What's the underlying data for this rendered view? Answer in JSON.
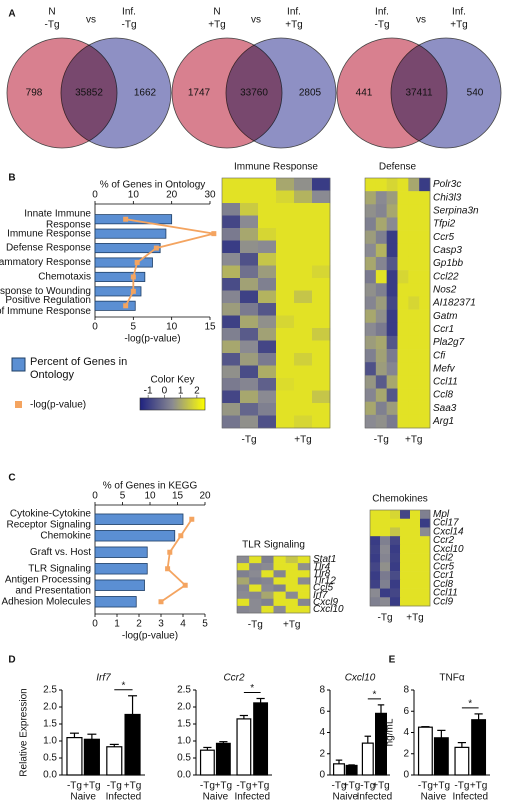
{
  "panel_labels": [
    "A",
    "B",
    "C",
    "D",
    "E"
  ],
  "color_key": {
    "title": "Color Key",
    "lim": [
      -1.5,
      2.5
    ],
    "ticks": [
      -1,
      0,
      1,
      2
    ],
    "colors": [
      "#1e2280",
      "#8a8a92",
      "#ffff00"
    ]
  },
  "chart_data": [
    {
      "type": "venn",
      "sets": [
        {
          "label": [
            "N",
            "-Tg"
          ],
          "color": "#d8808f"
        },
        {
          "label": [
            "Inf.",
            "-Tg"
          ],
          "color": "#8e90c4"
        }
      ],
      "separator": "vs",
      "values": [
        798,
        35852,
        1662
      ]
    },
    {
      "type": "venn",
      "sets": [
        {
          "label": [
            "N",
            "+Tg"
          ],
          "color": "#d8808f"
        },
        {
          "label": [
            "Inf.",
            "+Tg"
          ],
          "color": "#8e90c4"
        }
      ],
      "separator": "vs",
      "values": [
        1747,
        33760,
        2805
      ]
    },
    {
      "type": "venn",
      "sets": [
        {
          "label": [
            "Inf.",
            "-Tg"
          ],
          "color": "#d8808f"
        },
        {
          "label": [
            "Inf.",
            "+Tg"
          ],
          "color": "#8e90c4"
        }
      ],
      "separator": "vs",
      "values": [
        441,
        37411,
        540
      ]
    },
    {
      "type": "combo",
      "title": "% of Genes in Ontology",
      "xlabel": "-log(p-value)",
      "categories": [
        [
          "Innate Immune",
          "Response"
        ],
        "Immune Response",
        "Defense Response",
        "Inflammatory Response",
        "Chemotaxis",
        "Response to Wounding",
        [
          "Positive Regulation",
          "of Immune Response"
        ]
      ],
      "xlim": [
        0,
        30
      ],
      "xticks": [
        0,
        10,
        20,
        30
      ],
      "x2lim": [
        0,
        15
      ],
      "x2ticks": [
        0,
        5,
        10,
        15
      ],
      "legend": "lower left",
      "series": [
        {
          "name": "Percent of Genes in Ontology",
          "color": "#5b8fd3",
          "values": [
            20,
            18.5,
            17,
            15,
            13,
            12,
            10.5
          ]
        },
        {
          "name": "-log(p-value)",
          "color": "#f4a460",
          "values": [
            4,
            15.5,
            8,
            5.5,
            5,
            5,
            4
          ],
          "axis": "x2"
        }
      ]
    },
    {
      "type": "heatmap",
      "title": "Immune Response",
      "groups": [
        "-Tg",
        "+Tg"
      ],
      "values": [
        [
          2,
          2,
          2,
          1,
          0.6,
          -1
        ],
        [
          2,
          2,
          2,
          1.8,
          1.2,
          0.5
        ],
        [
          0.3,
          1.6,
          2,
          2,
          2,
          2
        ],
        [
          -0.8,
          0.5,
          2,
          2,
          2,
          2
        ],
        [
          0.2,
          1,
          1.8,
          2,
          2,
          2
        ],
        [
          -1,
          0.6,
          0.5,
          2,
          2,
          2
        ],
        [
          0.5,
          -0.6,
          1.5,
          2,
          2,
          2
        ],
        [
          1.2,
          0,
          0.8,
          2,
          2,
          1.8
        ],
        [
          -0.7,
          0.9,
          0.3,
          2,
          2,
          2
        ],
        [
          0.4,
          -0.9,
          1.2,
          2,
          1.5,
          2
        ],
        [
          0.8,
          0.2,
          -0.5,
          2,
          2,
          2
        ],
        [
          -0.9,
          1,
          0.6,
          1.8,
          2,
          2
        ],
        [
          0.3,
          -0.4,
          0.9,
          2,
          2,
          1.6
        ],
        [
          1,
          0.5,
          -0.8,
          2,
          2,
          2
        ],
        [
          -0.5,
          0.8,
          0.2,
          2,
          1.7,
          2
        ],
        [
          0.6,
          -0.7,
          1.1,
          2,
          2,
          2
        ],
        [
          0.2,
          0.4,
          -0.3,
          1.9,
          2,
          2
        ],
        [
          -0.8,
          1,
          0.5,
          2,
          2,
          1.5
        ],
        [
          0.7,
          -0.2,
          0.3,
          2,
          2,
          2
        ],
        [
          0.1,
          0.6,
          -0.6,
          2,
          1.8,
          2
        ]
      ]
    },
    {
      "type": "heatmap",
      "title": "Defense",
      "groups": [
        "-Tg",
        "+Tg"
      ],
      "rows": [
        "Polr3c",
        "Chi3l3",
        "Serpina3n",
        "Tfpi2",
        "Ccr5",
        "Casp3",
        "Gp1bb",
        "Ccl22",
        "Nos2",
        "AI182371",
        "Gatm",
        "Ccr1",
        "Pla2g7",
        "Cfi",
        "Mefv",
        "Ccl11",
        "Ccl8",
        "Saa3",
        "Arg1"
      ],
      "values": [
        [
          2,
          2,
          1.8,
          2,
          1,
          -1
        ],
        [
          1,
          0.5,
          0.8,
          2,
          2,
          2
        ],
        [
          0.6,
          0.4,
          1,
          2,
          2,
          2
        ],
        [
          0.3,
          1,
          0.5,
          2,
          2,
          2
        ],
        [
          0.8,
          0.3,
          -1,
          2,
          2,
          2
        ],
        [
          0.5,
          1.2,
          -1,
          2,
          2,
          2
        ],
        [
          1,
          0.4,
          -0.5,
          2,
          2,
          2
        ],
        [
          0.2,
          2,
          -1,
          1.8,
          2,
          2
        ],
        [
          0.6,
          0.3,
          -1,
          2,
          2,
          2
        ],
        [
          0.4,
          0.8,
          -0.8,
          2,
          1.8,
          2
        ],
        [
          1,
          0.6,
          -1,
          2,
          2,
          2
        ],
        [
          0.5,
          0.2,
          -1,
          2,
          2,
          2
        ],
        [
          0.8,
          1,
          -0.5,
          2,
          2,
          2
        ],
        [
          0.3,
          0.9,
          0.2,
          2,
          2,
          2
        ],
        [
          -0.6,
          0.8,
          0.4,
          2,
          2,
          2
        ],
        [
          0.7,
          -0.4,
          1,
          2,
          2,
          2
        ],
        [
          0.4,
          1,
          -0.5,
          2,
          2,
          2
        ],
        [
          1,
          0.3,
          0.8,
          2,
          2,
          2
        ],
        [
          0.5,
          0.6,
          0.2,
          2,
          2,
          2
        ]
      ]
    },
    {
      "type": "combo",
      "title": "% of Genes in KEGG",
      "xlabel": "-log(p-value)",
      "categories": [
        [
          "Cytokine-Cytokine",
          "Receptor Signaling"
        ],
        "Chemokine",
        "Graft vs. Host",
        "TLR Signaling",
        [
          "Antigen Processing",
          "and Presentation"
        ],
        "Cell Adhesion Molecules"
      ],
      "xlim": [
        0,
        20
      ],
      "xticks": [
        0,
        5,
        10,
        15,
        20
      ],
      "x2lim": [
        0,
        5
      ],
      "x2ticks": [
        0,
        1,
        2,
        3,
        4,
        5
      ],
      "series": [
        {
          "color": "#5b8fd3",
          "values": [
            16,
            14.5,
            9.5,
            9.5,
            9,
            7.5
          ]
        },
        {
          "color": "#f4a460",
          "values": [
            4.4,
            3.9,
            3.4,
            3.3,
            4.1,
            3
          ],
          "axis": "x2"
        }
      ]
    },
    {
      "type": "heatmap",
      "title": "TLR Signaling",
      "groups": [
        "-Tg",
        "+Tg"
      ],
      "rows": [
        "Stat1",
        "Tlr4",
        "Tlr8",
        "Tlr12",
        "Ccl5",
        "Irf7",
        "Cxcl9",
        "Cxcl10"
      ],
      "values": [
        [
          0.5,
          2,
          0.3,
          2,
          1.5,
          2
        ],
        [
          2,
          0.4,
          0.5,
          2,
          2,
          0.6
        ],
        [
          0.3,
          0.5,
          2,
          0.4,
          2,
          2
        ],
        [
          1,
          0.3,
          0.4,
          2,
          2,
          0.5
        ],
        [
          0.4,
          2,
          0.5,
          0.3,
          2,
          2
        ],
        [
          0.5,
          0.4,
          1,
          2,
          0.5,
          2
        ],
        [
          2,
          0.5,
          0.3,
          2,
          2,
          0.4
        ],
        [
          0.4,
          0.5,
          2,
          0.5,
          2,
          2
        ]
      ]
    },
    {
      "type": "heatmap",
      "title": "Chemokines",
      "groups": [
        "-Tg",
        "+Tg"
      ],
      "rows": [
        "Mpl",
        "Ccl17",
        "Cxcl14",
        "Ccr2",
        "Cxcl10",
        "Ccl2",
        "Ccr5",
        "Ccr1",
        "Ccl8",
        "Ccl11",
        "Ccl9"
      ],
      "values": [
        [
          2,
          2,
          1.8,
          -0.8,
          2,
          0.3
        ],
        [
          2,
          2,
          2,
          2,
          2,
          -1
        ],
        [
          2,
          2,
          1.5,
          2,
          2,
          0.5
        ],
        [
          -1,
          0.3,
          -0.8,
          2,
          2,
          2
        ],
        [
          -0.9,
          0.5,
          -1,
          2,
          2,
          2
        ],
        [
          -1,
          0.4,
          -0.9,
          2,
          2,
          2
        ],
        [
          -0.8,
          0.6,
          -1,
          2,
          2,
          2
        ],
        [
          -1,
          0.2,
          -0.7,
          2,
          2,
          2
        ],
        [
          -0.9,
          0.3,
          -1,
          2,
          2,
          2
        ],
        [
          0.5,
          -1,
          -0.8,
          2,
          2,
          2
        ],
        [
          0.3,
          0.5,
          -1,
          2,
          2,
          2
        ]
      ]
    },
    {
      "type": "bar",
      "title": "Irf7",
      "title_italic": true,
      "ylabel": "Relative Expression",
      "categories": [
        "-Tg",
        "+Tg",
        "-Tg",
        "+Tg"
      ],
      "groups": [
        "Naive",
        "Infected"
      ],
      "values": [
        1.1,
        1.05,
        0.83,
        1.78
      ],
      "errors": [
        0.13,
        0.15,
        0.07,
        0.55
      ],
      "colors": [
        "#ffffff",
        "#000000",
        "#ffffff",
        "#000000"
      ],
      "ylim": [
        0,
        2.5
      ],
      "yticks": [
        {
          "value": 0,
          "label": "0.0"
        },
        {
          "value": 0.5,
          "label": "0.5"
        },
        {
          "value": 1,
          "label": "1.0"
        },
        {
          "value": 1.5,
          "label": "1.5"
        },
        {
          "value": 2,
          "label": "2.0"
        },
        {
          "value": 2.5,
          "label": "2.5"
        }
      ],
      "annotation": "*"
    },
    {
      "type": "bar",
      "title": "Ccr2",
      "title_italic": true,
      "categories": [
        "-Tg",
        "+Tg",
        "-Tg",
        "+Tg"
      ],
      "groups": [
        "Naive",
        "Infected"
      ],
      "values": [
        0.73,
        0.93,
        1.65,
        2.12
      ],
      "errors": [
        0.08,
        0.05,
        0.1,
        0.13
      ],
      "colors": [
        "#ffffff",
        "#000000",
        "#ffffff",
        "#000000"
      ],
      "ylim": [
        0,
        2.5
      ],
      "yticks": [
        {
          "value": 0,
          "label": "0.0"
        },
        {
          "value": 0.5,
          "label": "0.5"
        },
        {
          "value": 1,
          "label": "1.0"
        },
        {
          "value": 1.5,
          "label": "1.5"
        },
        {
          "value": 2,
          "label": "2.0"
        },
        {
          "value": 2.5,
          "label": "2.5"
        }
      ],
      "annotation": "*"
    },
    {
      "type": "bar",
      "title": "Cxcl10",
      "title_italic": true,
      "categories": [
        "-Tg",
        "+Tg",
        "-Tg",
        "+Tg"
      ],
      "groups": [
        "Naive",
        "Infected"
      ],
      "values": [
        1.05,
        0.9,
        3.0,
        5.8
      ],
      "errors": [
        0.35,
        0.05,
        0.65,
        0.8
      ],
      "colors": [
        "#ffffff",
        "#000000",
        "#ffffff",
        "#000000"
      ],
      "ylim": [
        0,
        8
      ],
      "yticks": [
        0,
        2,
        4,
        6,
        8
      ],
      "annotation": "*"
    },
    {
      "type": "bar",
      "title": "TNFα",
      "title_italic": false,
      "ylabel": "ng/mL",
      "categories": [
        "-Tg",
        "+Tg",
        "-Tg",
        "+Tg"
      ],
      "groups": [
        "Naive",
        "Infected"
      ],
      "values": [
        4.5,
        3.5,
        2.6,
        5.2
      ],
      "errors": [
        0.05,
        0.7,
        0.45,
        0.55
      ],
      "colors": [
        "#ffffff",
        "#000000",
        "#ffffff",
        "#000000"
      ],
      "ylim": [
        0,
        8
      ],
      "yticks": [
        0,
        2,
        4,
        6,
        8
      ],
      "annotation": "*"
    }
  ]
}
